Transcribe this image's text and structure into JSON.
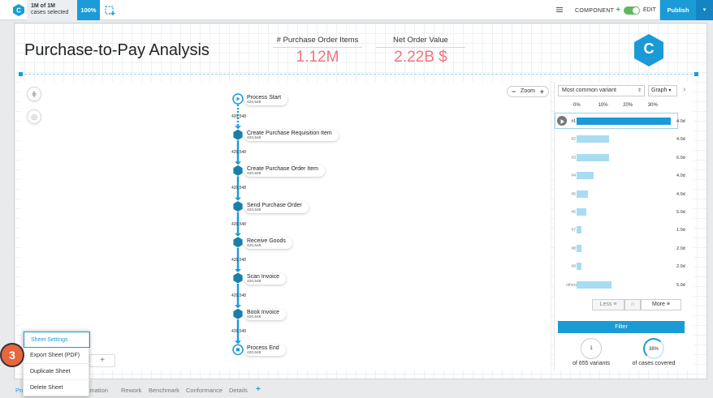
{
  "topbar": {
    "selection_count": "1M of 1M",
    "selection_label": "cases selected",
    "percent": "100%",
    "component_label": "COMPONENT",
    "edit_label": "EDIT",
    "publish_label": "Publish"
  },
  "sheet": {
    "title": "Purchase-to-Pay Analysis",
    "kpis": [
      {
        "label": "# Purchase Order Items",
        "value": "1.12M"
      },
      {
        "label": "Net Order Value",
        "value": "2.22B $"
      }
    ],
    "logo_letter": "C"
  },
  "process_map": {
    "zoom_label": "Zoom",
    "edge_count": "420,548",
    "nodes": [
      {
        "label": "Process Start",
        "count": "420,548"
      },
      {
        "label": "Create Purchase Requisition Item",
        "count": "420,548"
      },
      {
        "label": "Create Purchase Order Item",
        "count": "420,548"
      },
      {
        "label": "Send Purchase Order",
        "count": "420,548"
      },
      {
        "label": "Receive Goods",
        "count": "420,548"
      },
      {
        "label": "Scan Invoice",
        "count": "420,548"
      },
      {
        "label": "Book Invoice",
        "count": "420,548"
      },
      {
        "label": "Process End",
        "count": "420,548"
      }
    ]
  },
  "variants": {
    "select_label": "Most common variant",
    "view_label": "Graph",
    "axis": [
      "0%",
      "10%",
      "20%",
      "30%"
    ],
    "rows": [
      {
        "label": "#1",
        "value": 38,
        "duration": "4.0d"
      },
      {
        "label": "#2",
        "value": 13,
        "duration": "4.0d"
      },
      {
        "label": "#3",
        "value": 13,
        "duration": "6.0d"
      },
      {
        "label": "#4",
        "value": 7,
        "duration": "4.0d"
      },
      {
        "label": "#5",
        "value": 4.5,
        "duration": "4.0d"
      },
      {
        "label": "#6",
        "value": 4,
        "duration": "5.0d"
      },
      {
        "label": "#7",
        "value": 2,
        "duration": "1.0d"
      },
      {
        "label": "#8",
        "value": 2,
        "duration": "2.0d"
      },
      {
        "label": "#9",
        "value": 2,
        "duration": "2.0d"
      },
      {
        "label": "others",
        "value": 14,
        "duration": "5.0d"
      }
    ],
    "less_label": "Less",
    "more_label": "More",
    "filter_label": "Filter",
    "variants_count": "1",
    "variants_caption": "of 655 variants",
    "cases_percent": "38%",
    "cases_caption": "of cases covered"
  },
  "tabs": [
    "Pro",
    "Automation",
    "Rework",
    "Benchmark",
    "Conformance",
    "Details"
  ],
  "context_menu": {
    "items": [
      "Sheet Settings",
      "Export Sheet (PDF)",
      "Duplicate Sheet",
      "Delete Sheet"
    ],
    "step_badge": "3"
  },
  "colors": {
    "accent": "#1a9bd7",
    "kpi": "#f0737a",
    "badge": "#e8663d",
    "toggle": "#5fb760"
  }
}
